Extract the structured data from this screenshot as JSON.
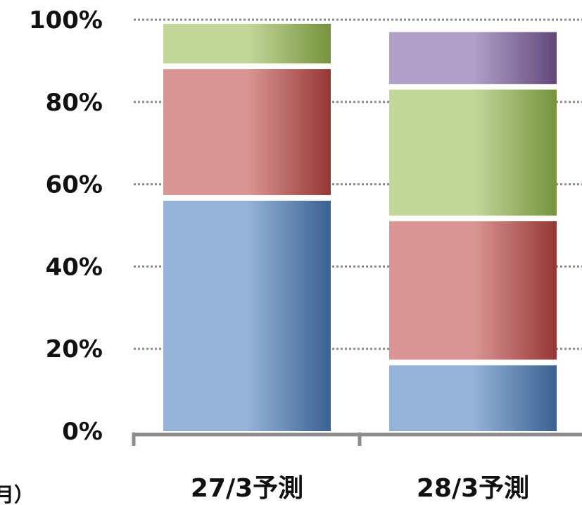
{
  "chart_data": {
    "type": "bar",
    "stacked": true,
    "categories": [
      "27/3予測",
      "28/3予測"
    ],
    "series": [
      {
        "color": "#4f81bd",
        "values": [
          56,
          16
        ]
      },
      {
        "color": "#c0504d",
        "values": [
          32,
          35
        ]
      },
      {
        "color": "#9bbb59",
        "values": [
          11,
          32
        ]
      },
      {
        "color": "#8064a2",
        "values": [
          0,
          14
        ]
      }
    ],
    "yticks": [
      "0%",
      "20%",
      "40%",
      "60%",
      "80%",
      "100%"
    ],
    "ylim": [
      0,
      100
    ],
    "grid": "dotted horizontal",
    "cropped_label": "月）"
  }
}
